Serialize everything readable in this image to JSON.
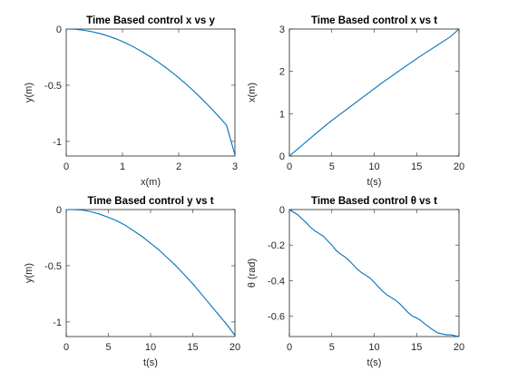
{
  "figure": {
    "background": "#ffffff",
    "line_color": "#0072BD"
  },
  "chart_data": [
    {
      "type": "line",
      "title": "Time Based control x vs y",
      "xlabel": "x(m)",
      "ylabel": "y(m)",
      "xlim": [
        0,
        3
      ],
      "ylim": [
        -1.13,
        0
      ],
      "xticks": [
        0,
        1,
        2,
        3
      ],
      "xtick_labels": [
        "0",
        "1",
        "2",
        "3"
      ],
      "yticks": [
        -1,
        -0.5,
        0
      ],
      "ytick_labels": [
        "-1",
        "-0.5",
        "0"
      ],
      "grid": false,
      "series": [
        {
          "x": [
            0,
            0.15,
            0.3,
            0.45,
            0.6,
            0.75,
            0.9,
            1.05,
            1.2,
            1.35,
            1.5,
            1.65,
            1.8,
            1.95,
            2.1,
            2.25,
            2.4,
            2.55,
            2.7,
            2.85,
            3.0
          ],
          "y": [
            0,
            -0.002,
            -0.01,
            -0.023,
            -0.04,
            -0.063,
            -0.09,
            -0.122,
            -0.16,
            -0.202,
            -0.248,
            -0.299,
            -0.354,
            -0.413,
            -0.477,
            -0.544,
            -0.616,
            -0.692,
            -0.772,
            -0.856,
            -1.12
          ]
        }
      ]
    },
    {
      "type": "line",
      "title": "Time Based control x vs t",
      "xlabel": "t(s)",
      "ylabel": "x(m)",
      "xlim": [
        0,
        20
      ],
      "ylim": [
        0,
        3
      ],
      "xticks": [
        0,
        5,
        10,
        15,
        20
      ],
      "xtick_labels": [
        "0",
        "5",
        "10",
        "15",
        "20"
      ],
      "yticks": [
        0,
        1,
        2,
        3
      ],
      "ytick_labels": [
        "0",
        "1",
        "2",
        "3"
      ],
      "grid": false,
      "series": [
        {
          "x": [
            0,
            1,
            2,
            3,
            4,
            5,
            6,
            7,
            8,
            9,
            10,
            11,
            12,
            13,
            14,
            15,
            16,
            17,
            18,
            19,
            20
          ],
          "y": [
            0,
            0.17,
            0.34,
            0.51,
            0.68,
            0.84,
            0.99,
            1.14,
            1.29,
            1.44,
            1.59,
            1.74,
            1.88,
            2.02,
            2.16,
            2.3,
            2.43,
            2.56,
            2.69,
            2.82,
            3.0
          ]
        }
      ]
    },
    {
      "type": "line",
      "title": "Time Based control y vs t",
      "xlabel": "t(s)",
      "ylabel": "y(m)",
      "xlim": [
        0,
        20
      ],
      "ylim": [
        -1.13,
        0
      ],
      "xticks": [
        0,
        5,
        10,
        15,
        20
      ],
      "xtick_labels": [
        "0",
        "5",
        "10",
        "15",
        "20"
      ],
      "yticks": [
        -1,
        -0.5,
        0
      ],
      "ytick_labels": [
        "-1",
        "-0.5",
        "0"
      ],
      "grid": false,
      "series": [
        {
          "x": [
            0,
            1,
            2,
            3,
            4,
            5,
            6,
            7,
            8,
            9,
            10,
            11,
            12,
            13,
            14,
            15,
            16,
            17,
            18,
            19,
            20
          ],
          "y": [
            0,
            -0.001,
            -0.006,
            -0.02,
            -0.042,
            -0.07,
            -0.1,
            -0.14,
            -0.19,
            -0.24,
            -0.3,
            -0.36,
            -0.43,
            -0.5,
            -0.58,
            -0.66,
            -0.75,
            -0.84,
            -0.93,
            -1.02,
            -1.12
          ]
        }
      ]
    },
    {
      "type": "line",
      "title": "Time Based control θ vs t",
      "xlabel": "t(s)",
      "ylabel": "θ (rad)",
      "xlim": [
        0,
        20
      ],
      "ylim": [
        -0.715,
        0
      ],
      "xticks": [
        0,
        5,
        10,
        15,
        20
      ],
      "xtick_labels": [
        "0",
        "5",
        "10",
        "15",
        "20"
      ],
      "yticks": [
        -0.6,
        -0.4,
        -0.2,
        0
      ],
      "ytick_labels": [
        "-0.6",
        "-0.4",
        "-0.2",
        "0"
      ],
      "grid": false,
      "series": [
        {
          "x": [
            0,
            1,
            2,
            2.5,
            3,
            3.5,
            4,
            5,
            5.5,
            6,
            6.5,
            7,
            8,
            8.5,
            9,
            9.5,
            10,
            11,
            11.5,
            12,
            12.5,
            13,
            14,
            14.5,
            15,
            15.5,
            16,
            17,
            17.5,
            18,
            18.5,
            19,
            20
          ],
          "y": [
            0,
            -0.03,
            -0.075,
            -0.1,
            -0.12,
            -0.135,
            -0.15,
            -0.2,
            -0.23,
            -0.25,
            -0.265,
            -0.285,
            -0.335,
            -0.355,
            -0.37,
            -0.385,
            -0.41,
            -0.46,
            -0.48,
            -0.495,
            -0.51,
            -0.53,
            -0.58,
            -0.6,
            -0.61,
            -0.625,
            -0.645,
            -0.68,
            -0.695,
            -0.7,
            -0.705,
            -0.705,
            -0.715
          ]
        }
      ]
    }
  ]
}
